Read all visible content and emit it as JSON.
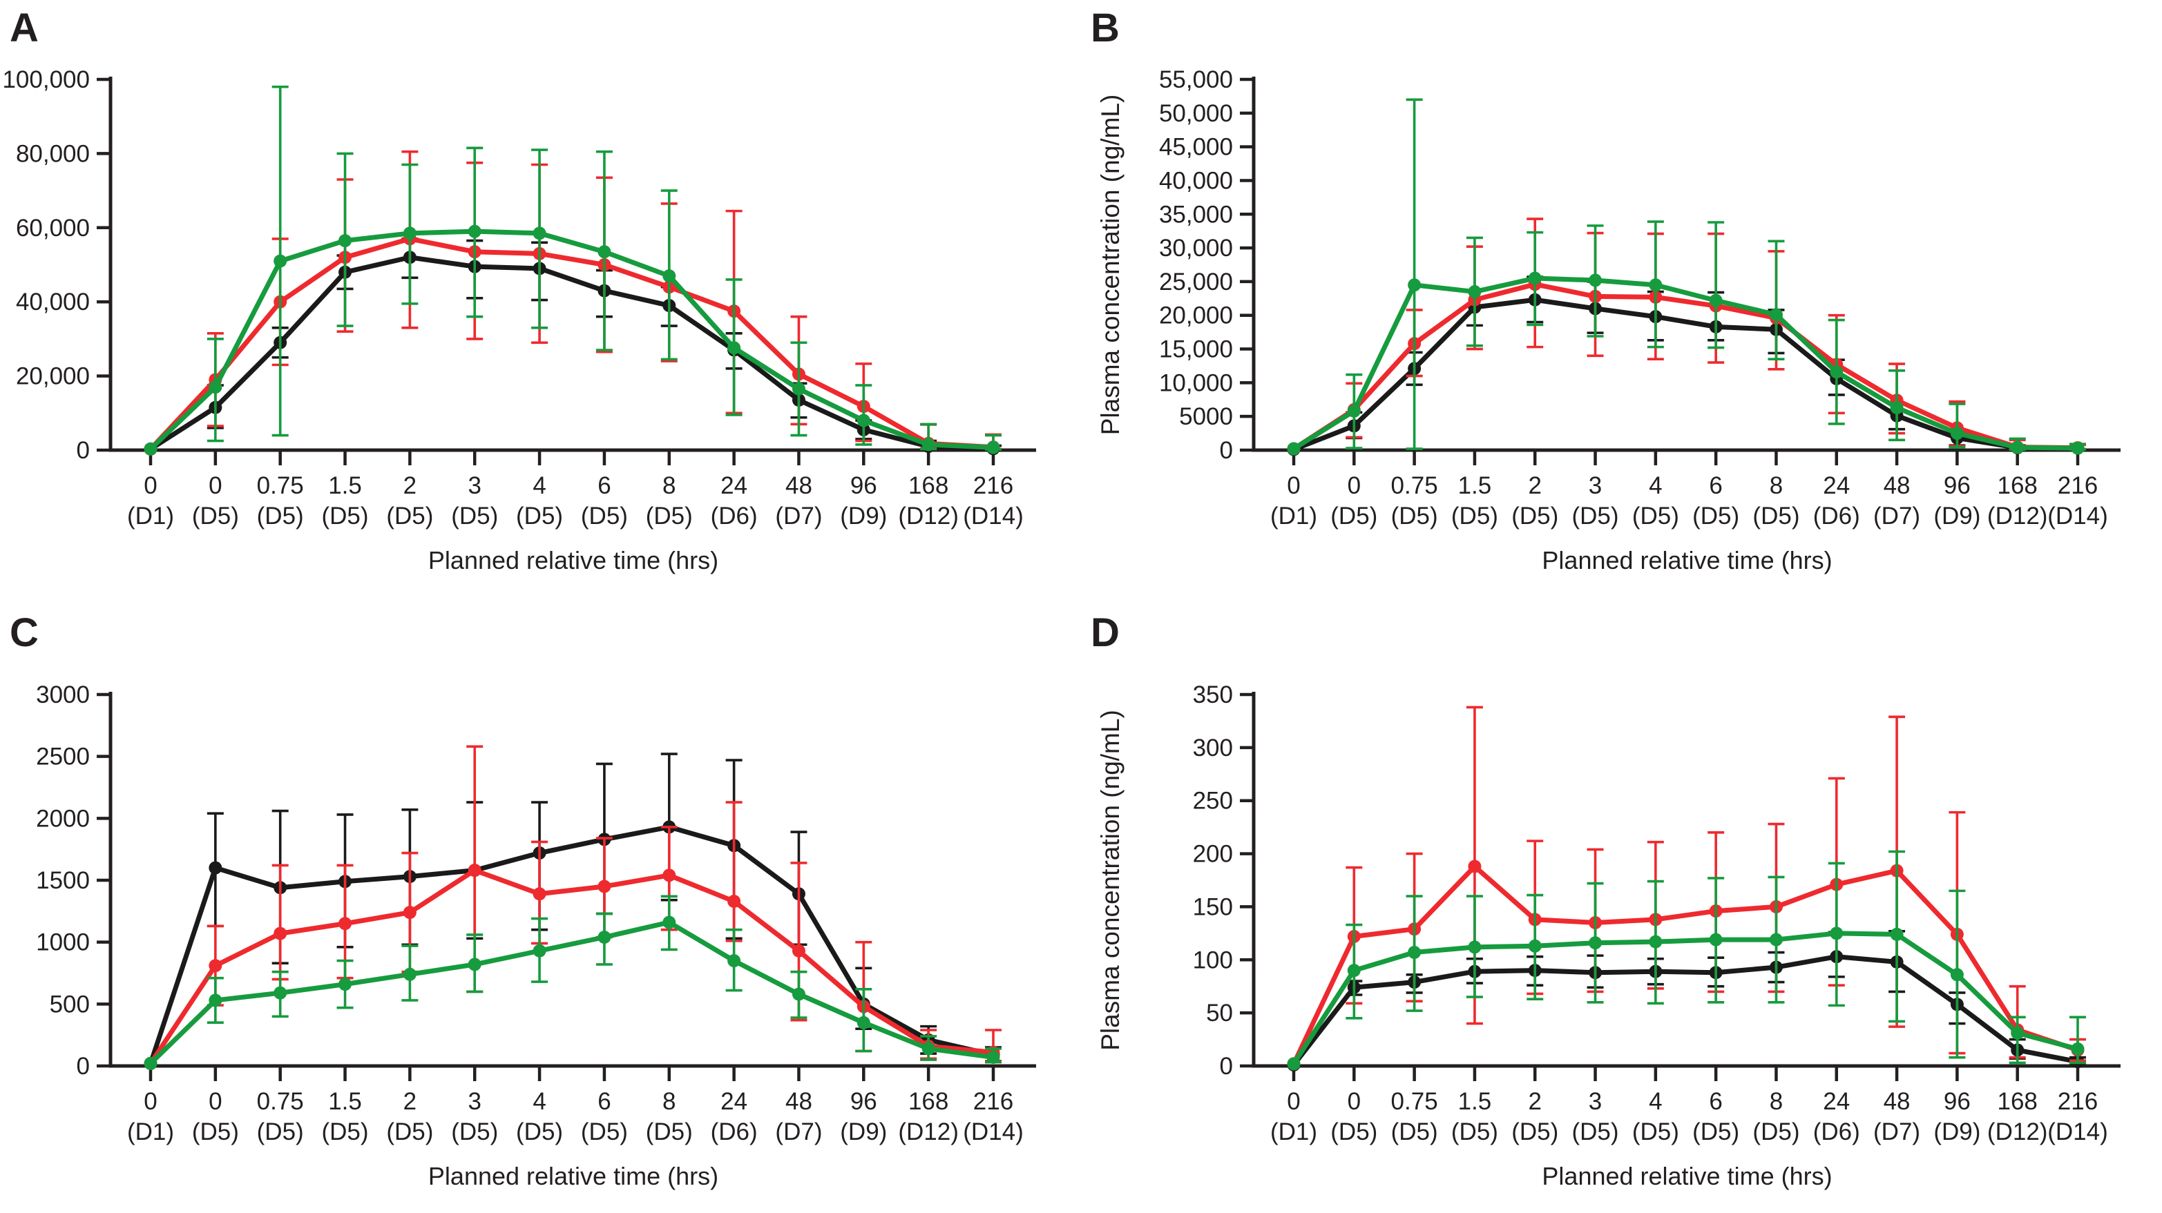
{
  "figure": {
    "background": "#ffffff",
    "axis_color": "#231f20",
    "series_colors": {
      "black": "#1a1a1a",
      "red": "#ee2a2e",
      "green": "#169b3e"
    }
  },
  "chart_data": [
    {
      "type": "line",
      "panel_letter": "A",
      "title": "",
      "xlabel": "Planned relative time (hrs)",
      "ylabel": "Plasma concentration (ng/mL)",
      "ylim": [
        0,
        100000
      ],
      "yticks": [
        0,
        20000,
        40000,
        60000,
        80000,
        100000
      ],
      "grid": false,
      "legend_position": "none",
      "categories": [
        "0",
        "0",
        "0.75",
        "1.5",
        "2",
        "3",
        "4",
        "6",
        "8",
        "24",
        "48",
        "96",
        "168",
        "216"
      ],
      "category_days": [
        "(D1)",
        "(D5)",
        "(D5)",
        "(D5)",
        "(D5)",
        "(D5)",
        "(D5)",
        "(D5)",
        "(D5)",
        "(D6)",
        "(D7)",
        "(D9)",
        "(D12)",
        "(D14)"
      ],
      "series": [
        {
          "name": "black",
          "color": "#1a1a1a",
          "values": [
            300,
            11500,
            29000,
            48000,
            52000,
            49500,
            49000,
            43000,
            39000,
            27000,
            13500,
            5500,
            1000,
            400
          ],
          "err_up": [
            300,
            17500,
            33000,
            52500,
            57000,
            56500,
            56000,
            48500,
            44000,
            31500,
            18000,
            8000,
            2500,
            1200
          ],
          "err_down": [
            300,
            6000,
            25000,
            43500,
            46500,
            41000,
            40500,
            36000,
            33500,
            22000,
            8800,
            3000,
            400,
            200
          ]
        },
        {
          "name": "red",
          "color": "#ee2a2e",
          "values": [
            300,
            19000,
            40000,
            52000,
            57000,
            53500,
            53000,
            50000,
            44000,
            37500,
            20500,
            11800,
            1800,
            800
          ],
          "err_up": [
            300,
            31500,
            57000,
            73000,
            80500,
            77500,
            77000,
            73500,
            66500,
            64500,
            36000,
            23300,
            6900,
            4200
          ],
          "err_down": [
            300,
            6500,
            23000,
            32000,
            33000,
            30000,
            29000,
            26500,
            24000,
            10000,
            7000,
            2500,
            400,
            300
          ]
        },
        {
          "name": "green",
          "color": "#169b3e",
          "values": [
            300,
            17000,
            51000,
            56500,
            58500,
            59000,
            58500,
            53500,
            47000,
            27600,
            16500,
            8000,
            1500,
            700
          ],
          "err_up": [
            300,
            30000,
            98000,
            80000,
            77000,
            81500,
            81000,
            80500,
            70000,
            46000,
            29000,
            17500,
            7000,
            4000
          ],
          "err_down": [
            300,
            2500,
            4000,
            33500,
            39500,
            36000,
            33000,
            27000,
            24500,
            9500,
            4000,
            1500,
            300,
            200
          ]
        }
      ]
    },
    {
      "type": "line",
      "panel_letter": "B",
      "title": "",
      "xlabel": "Planned relative time (hrs)",
      "ylabel": "Plasma concentration (ng/mL)",
      "ylim": [
        0,
        55000
      ],
      "yticks": [
        0,
        5000,
        10000,
        15000,
        20000,
        25000,
        30000,
        35000,
        40000,
        45000,
        50000,
        55000
      ],
      "grid": false,
      "legend_position": "none",
      "categories": [
        "0",
        "0",
        "0.75",
        "1.5",
        "2",
        "3",
        "4",
        "6",
        "8",
        "24",
        "48",
        "96",
        "168",
        "216"
      ],
      "category_days": [
        "(D1)",
        "(D5)",
        "(D5)",
        "(D5)",
        "(D5)",
        "(D5)",
        "(D5)",
        "(D5)",
        "(D5)",
        "(D6)",
        "(D7)",
        "(D9)",
        "(D12)",
        "(D14)"
      ],
      "series": [
        {
          "name": "black",
          "color": "#1a1a1a",
          "values": [
            100,
            3600,
            12100,
            21200,
            22300,
            21000,
            19800,
            18300,
            17900,
            10600,
            5100,
            1800,
            350,
            300
          ],
          "err_up": [
            100,
            5600,
            14500,
            23700,
            25700,
            25000,
            23500,
            23400,
            20800,
            13400,
            6800,
            2800,
            700,
            400
          ],
          "err_down": [
            100,
            1800,
            9700,
            18500,
            19000,
            17400,
            16300,
            16300,
            14400,
            8200,
            3100,
            700,
            150,
            150
          ]
        },
        {
          "name": "red",
          "color": "#ee2a2e",
          "values": [
            200,
            6000,
            15800,
            22300,
            24600,
            22800,
            22700,
            21400,
            19600,
            12700,
            7400,
            3300,
            450,
            350
          ],
          "err_up": [
            200,
            9900,
            20800,
            30200,
            34300,
            32200,
            32100,
            32100,
            29500,
            20000,
            12800,
            7200,
            1500,
            800
          ],
          "err_down": [
            200,
            1900,
            11000,
            15000,
            15300,
            14000,
            13500,
            13000,
            12000,
            5500,
            2500,
            600,
            150,
            150
          ]
        },
        {
          "name": "green",
          "color": "#169b3e",
          "values": [
            200,
            5800,
            24500,
            23500,
            25500,
            25200,
            24500,
            22200,
            20100,
            11600,
            6300,
            2500,
            400,
            300
          ],
          "err_up": [
            200,
            11200,
            52000,
            31500,
            32300,
            33300,
            33900,
            33800,
            31000,
            19300,
            11800,
            6850,
            1700,
            900
          ],
          "err_down": [
            200,
            300,
            200,
            15500,
            18600,
            16900,
            15300,
            15200,
            13500,
            3900,
            1500,
            400,
            100,
            100
          ]
        }
      ]
    },
    {
      "type": "line",
      "panel_letter": "C",
      "title": "",
      "xlabel": "Planned relative time (hrs)",
      "ylabel": "Plasma concentration (ng/mL)",
      "ylim": [
        0,
        3000
      ],
      "yticks": [
        0,
        500,
        1000,
        1500,
        2000,
        2500,
        3000
      ],
      "grid": false,
      "legend_position": "none",
      "categories": [
        "0",
        "0",
        "0.75",
        "1.5",
        "2",
        "3",
        "4",
        "6",
        "8",
        "24",
        "48",
        "96",
        "168",
        "216"
      ],
      "category_days": [
        "(D1)",
        "(D5)",
        "(D5)",
        "(D5)",
        "(D5)",
        "(D5)",
        "(D5)",
        "(D5)",
        "(D5)",
        "(D6)",
        "(D7)",
        "(D9)",
        "(D12)",
        "(D14)"
      ],
      "series": [
        {
          "name": "black",
          "color": "#1a1a1a",
          "values": [
            20,
            1600,
            1440,
            1490,
            1530,
            1580,
            1720,
            1830,
            1930,
            1780,
            1390,
            500,
            210,
            90
          ],
          "err_up": [
            20,
            2040,
            2060,
            2030,
            2070,
            2130,
            2130,
            2440,
            2520,
            2470,
            1890,
            790,
            320,
            150
          ],
          "err_down": [
            20,
            1130,
            830,
            960,
            980,
            1030,
            1100,
            1230,
            1340,
            1030,
            980,
            300,
            100,
            40
          ]
        },
        {
          "name": "red",
          "color": "#ee2a2e",
          "values": [
            20,
            810,
            1070,
            1150,
            1240,
            1580,
            1390,
            1450,
            1540,
            1330,
            930,
            480,
            160,
            110
          ],
          "err_up": [
            20,
            1130,
            1620,
            1620,
            1720,
            2580,
            1810,
            1840,
            1930,
            2130,
            1640,
            1000,
            290,
            290
          ],
          "err_down": [
            20,
            490,
            700,
            710,
            760,
            600,
            990,
            1040,
            1100,
            1010,
            370,
            120,
            60,
            40
          ]
        },
        {
          "name": "green",
          "color": "#169b3e",
          "values": [
            20,
            530,
            590,
            660,
            740,
            820,
            930,
            1040,
            1160,
            850,
            580,
            350,
            140,
            70
          ],
          "err_up": [
            20,
            710,
            760,
            850,
            970,
            1060,
            1190,
            1230,
            1370,
            1100,
            760,
            620,
            240,
            140
          ],
          "err_down": [
            20,
            350,
            400,
            470,
            530,
            600,
            680,
            820,
            940,
            610,
            390,
            120,
            50,
            30
          ]
        }
      ]
    },
    {
      "type": "line",
      "panel_letter": "D",
      "title": "",
      "xlabel": "Planned relative time (hrs)",
      "ylabel": "Plasma concentration (ng/mL)",
      "ylim": [
        0,
        350
      ],
      "yticks": [
        0,
        50,
        100,
        150,
        200,
        250,
        300,
        350
      ],
      "grid": false,
      "legend_position": "none",
      "categories": [
        "0",
        "0",
        "0.75",
        "1.5",
        "2",
        "3",
        "4",
        "6",
        "8",
        "24",
        "48",
        "96",
        "168",
        "216"
      ],
      "category_days": [
        "(D1)",
        "(D5)",
        "(D5)",
        "(D5)",
        "(D5)",
        "(D5)",
        "(D5)",
        "(D5)",
        "(D5)",
        "(D6)",
        "(D7)",
        "(D9)",
        "(D12)",
        "(D14)"
      ],
      "series": [
        {
          "name": "black",
          "color": "#1a1a1a",
          "values": [
            1,
            74,
            79,
            89,
            90,
            88,
            89,
            88,
            93,
            103,
            98,
            58,
            15,
            4
          ],
          "err_up": [
            1,
            80,
            86,
            101,
            103,
            104,
            101,
            102,
            107,
            126,
            127,
            69,
            25,
            8
          ],
          "err_down": [
            1,
            67,
            69,
            78,
            76,
            74,
            77,
            75,
            79,
            84,
            70,
            40,
            7,
            2
          ]
        },
        {
          "name": "red",
          "color": "#ee2a2e",
          "values": [
            2,
            122,
            129,
            188,
            138,
            135,
            138,
            146,
            150,
            171,
            184,
            124,
            34,
            15
          ],
          "err_up": [
            2,
            187,
            200,
            338,
            212,
            204,
            211,
            220,
            228,
            271,
            329,
            239,
            75,
            25
          ],
          "err_down": [
            2,
            59,
            61,
            40,
            68,
            70,
            73,
            70,
            70,
            76,
            37,
            12,
            8,
            5
          ]
        },
        {
          "name": "green",
          "color": "#169b3e",
          "values": [
            2,
            90,
            107,
            112,
            113,
            116,
            117,
            119,
            119,
            125,
            124,
            86,
            31,
            16
          ],
          "err_up": [
            2,
            133,
            160,
            160,
            161,
            172,
            174,
            177,
            178,
            191,
            202,
            165,
            46,
            46
          ],
          "err_down": [
            2,
            45,
            52,
            65,
            63,
            60,
            59,
            60,
            60,
            57,
            42,
            8,
            3,
            3
          ]
        }
      ]
    }
  ]
}
